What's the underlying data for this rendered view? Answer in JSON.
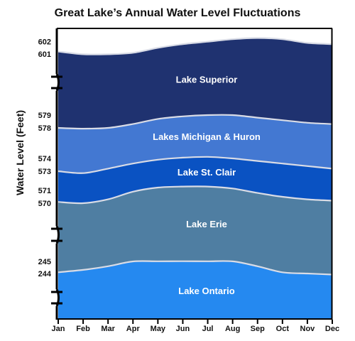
{
  "chart_data": {
    "type": "area",
    "title": "Great Lake’s Annual Water Level Fluctuations",
    "xlabel": "",
    "ylabel": "Water Level (Feet)",
    "axis_break": true,
    "categories": [
      "Jan",
      "Feb",
      "Mar",
      "Apr",
      "May",
      "Jun",
      "Jul",
      "Aug",
      "Sep",
      "Oct",
      "Nov",
      "Dec"
    ],
    "y_tick_labels": [
      "602",
      "601",
      "579",
      "578",
      "574",
      "573",
      "571",
      "570",
      "245",
      "244"
    ],
    "colors": {
      "sky": "#ffffff",
      "stroke": "#d9dce6",
      "axis": "#000000"
    },
    "series": [
      {
        "name": "Lake Superior",
        "color": "#1f3270",
        "values": [
          601.2,
          600.9,
          600.9,
          601.1,
          601.5,
          601.8,
          602.0,
          602.2,
          602.3,
          602.2,
          601.9,
          601.8
        ]
      },
      {
        "name": "Lakes Michigan & Huron",
        "color": "#4378d2",
        "values": [
          578.0,
          577.9,
          578.0,
          578.3,
          578.7,
          578.9,
          579.0,
          579.0,
          578.8,
          578.6,
          578.4,
          578.3
        ]
      },
      {
        "name": "Lake St. Clair",
        "color": "#0a52c2",
        "values": [
          573.0,
          572.8,
          573.2,
          573.6,
          573.9,
          574.1,
          574.2,
          574.0,
          573.8,
          573.6,
          573.4,
          573.2
        ]
      },
      {
        "name": "Lake Erie",
        "color": "#4f7ea2",
        "values": [
          570.1,
          570.0,
          570.3,
          570.9,
          571.3,
          571.4,
          571.4,
          571.2,
          570.8,
          570.5,
          570.3,
          570.2
        ]
      },
      {
        "name": "Lake Ontario",
        "color": "#2589f0",
        "values": [
          244.1,
          244.3,
          244.6,
          245.1,
          245.7,
          246.1,
          245.8,
          245.2,
          244.6,
          244.1,
          244.0,
          243.9
        ]
      }
    ]
  }
}
